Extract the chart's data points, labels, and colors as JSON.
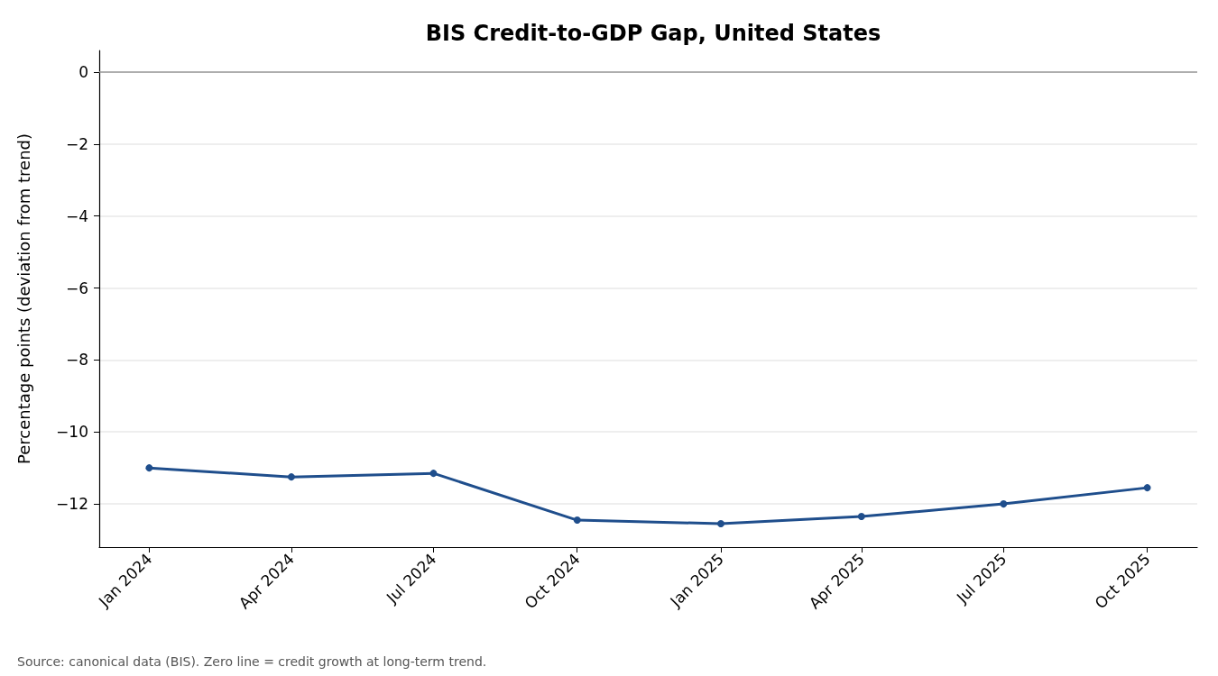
{
  "chart_data": {
    "type": "line",
    "title": "BIS Credit-to-GDP Gap, United States",
    "ylabel": "Percentage points (deviation from trend)",
    "annotations": [
      "Source: canonical data (BIS). Zero line = credit growth at long-term trend."
    ],
    "x": [
      "2024-01",
      "2024-04",
      "2024-07",
      "2024-10",
      "2025-01",
      "2025-04",
      "2025-07",
      "2025-10"
    ],
    "series": [
      {
        "color": "#1f4e8c",
        "values": [
          -11.0,
          -11.25,
          -11.15,
          -12.45,
          -12.55,
          -12.35,
          -12.0,
          -11.55
        ]
      }
    ],
    "xlim": [
      "2023-11-30",
      "2025-11-02"
    ],
    "xticks": [
      {
        "value": "2024-01",
        "label": "Jan 2024"
      },
      {
        "value": "2024-04",
        "label": "Apr 2024"
      },
      {
        "value": "2024-07",
        "label": "Jul 2024"
      },
      {
        "value": "2024-10",
        "label": "Oct 2024"
      },
      {
        "value": "2025-01",
        "label": "Jan 2025"
      },
      {
        "value": "2025-04",
        "label": "Apr 2025"
      },
      {
        "value": "2025-07",
        "label": "Jul 2025"
      },
      {
        "value": "2025-10",
        "label": "Oct 2025"
      }
    ],
    "ylim": [
      -13.2,
      0.6
    ],
    "yticks": [
      {
        "value": 0,
        "label": "0"
      },
      {
        "value": -2,
        "label": "−2"
      },
      {
        "value": -4,
        "label": "−4"
      },
      {
        "value": -6,
        "label": "−6"
      },
      {
        "value": -8,
        "label": "−8"
      },
      {
        "value": -10,
        "label": "−10"
      },
      {
        "value": -12,
        "label": "−12"
      }
    ],
    "ref_lines": [
      {
        "axis": "y",
        "value": 0,
        "color": "#999999",
        "line_style": "solid"
      }
    ],
    "grid": "y",
    "marker": "circle",
    "line_style": "solid"
  }
}
